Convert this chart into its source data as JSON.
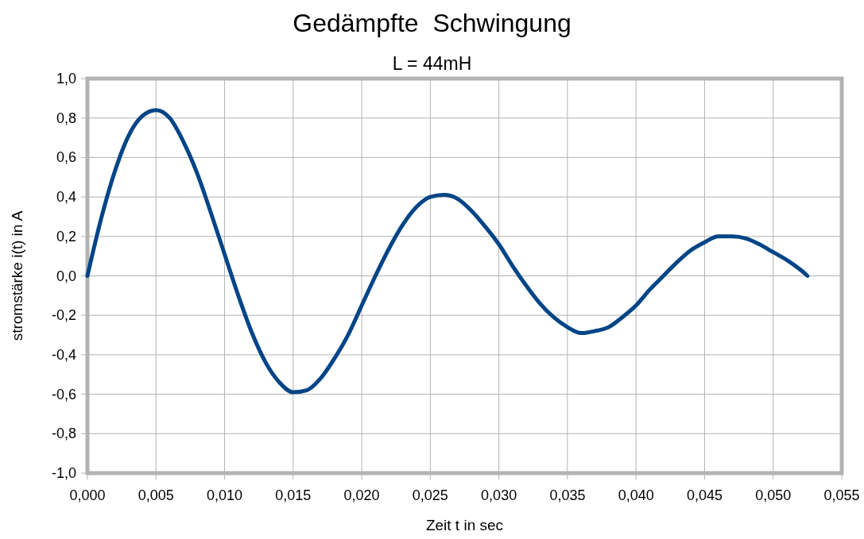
{
  "chart_data": {
    "type": "line",
    "title": "Gedämpfte  Schwingung",
    "subtitle": "L = 44mH",
    "xlabel": "Zeit t in sec",
    "ylabel": "stromstärke i(t) in A",
    "x": [
      0,
      0.001,
      0.002,
      0.003,
      0.004,
      0.005,
      0.006,
      0.007,
      0.008,
      0.009,
      0.01,
      0.011,
      0.012,
      0.013,
      0.014,
      0.015,
      0.016,
      0.017,
      0.018,
      0.019,
      0.02,
      0.021,
      0.022,
      0.023,
      0.024,
      0.025,
      0.026,
      0.027,
      0.028,
      0.029,
      0.03,
      0.031,
      0.032,
      0.033,
      0.034,
      0.035,
      0.036,
      0.037,
      0.038,
      0.039,
      0.04,
      0.041,
      0.042,
      0.043,
      0.044,
      0.045,
      0.046,
      0.047,
      0.048,
      0.049,
      0.05,
      0.051,
      0.052,
      0.0525
    ],
    "series": [
      {
        "color": "#004586",
        "values": [
          0,
          0.29,
          0.53,
          0.71,
          0.81,
          0.84,
          0.8,
          0.68,
          0.52,
          0.32,
          0.11,
          -0.1,
          -0.29,
          -0.44,
          -0.54,
          -0.59,
          -0.58,
          -0.52,
          -0.42,
          -0.3,
          -0.15,
          0,
          0.14,
          0.26,
          0.35,
          0.4,
          0.41,
          0.39,
          0.33,
          0.25,
          0.16,
          0.05,
          -0.05,
          -0.14,
          -0.21,
          -0.26,
          -0.29,
          -0.28,
          -0.26,
          -0.21,
          -0.15,
          -0.07,
          0,
          0.07,
          0.13,
          0.17,
          0.2,
          0.2,
          0.19,
          0.16,
          0.12,
          0.08,
          0.03,
          0
        ]
      }
    ],
    "xlim": [
      0,
      0.055
    ],
    "ylim": [
      -1,
      1
    ],
    "xticks": [
      {
        "value": 0,
        "label": "0,000"
      },
      {
        "value": 0.005,
        "label": "0,005"
      },
      {
        "value": 0.01,
        "label": "0,010"
      },
      {
        "value": 0.015,
        "label": "0,015"
      },
      {
        "value": 0.02,
        "label": "0,020"
      },
      {
        "value": 0.025,
        "label": "0,025"
      },
      {
        "value": 0.03,
        "label": "0,030"
      },
      {
        "value": 0.035,
        "label": "0,035"
      },
      {
        "value": 0.04,
        "label": "0,040"
      },
      {
        "value": 0.045,
        "label": "0,045"
      },
      {
        "value": 0.05,
        "label": "0,050"
      },
      {
        "value": 0.055,
        "label": "0,055"
      }
    ],
    "yticks": [
      {
        "value": -1,
        "label": "-1,0"
      },
      {
        "value": -0.8,
        "label": "-0,8"
      },
      {
        "value": -0.6,
        "label": "-0,6"
      },
      {
        "value": -0.4,
        "label": "-0,4"
      },
      {
        "value": -0.2,
        "label": "-0,2"
      },
      {
        "value": 0,
        "label": "0,0"
      },
      {
        "value": 0.2,
        "label": "0,2"
      },
      {
        "value": 0.4,
        "label": "0,4"
      },
      {
        "value": 0.6,
        "label": "0,6"
      },
      {
        "value": 0.8,
        "label": "0,8"
      },
      {
        "value": 1,
        "label": "1,0"
      }
    ],
    "grid": true,
    "marker": "none",
    "line_style": "solid"
  }
}
